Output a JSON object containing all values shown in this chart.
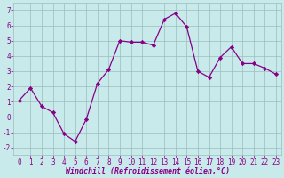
{
  "x": [
    0,
    1,
    2,
    3,
    4,
    5,
    6,
    7,
    8,
    9,
    10,
    11,
    12,
    13,
    14,
    15,
    16,
    17,
    18,
    19,
    20,
    21,
    22,
    23
  ],
  "y": [
    1.1,
    1.9,
    0.7,
    0.3,
    -1.1,
    -1.6,
    -0.15,
    2.2,
    3.1,
    5.0,
    4.9,
    4.9,
    4.7,
    6.4,
    6.8,
    5.9,
    3.0,
    2.6,
    3.9,
    4.6,
    3.5,
    3.5,
    3.2,
    2.8
  ],
  "line_color": "#880088",
  "marker": "D",
  "marker_size": 2.2,
  "bg_color": "#c8eaea",
  "grid_color": "#9bbdbd",
  "xlabel": "Windchill (Refroidissement éolien,°C)",
  "xlabel_color": "#880088",
  "tick_color": "#880088",
  "ylim": [
    -2.5,
    7.5
  ],
  "xlim": [
    -0.5,
    23.5
  ],
  "yticks": [
    -2,
    -1,
    0,
    1,
    2,
    3,
    4,
    5,
    6,
    7
  ],
  "xticks": [
    0,
    1,
    2,
    3,
    4,
    5,
    6,
    7,
    8,
    9,
    10,
    11,
    12,
    13,
    14,
    15,
    16,
    17,
    18,
    19,
    20,
    21,
    22,
    23
  ],
  "tick_fontsize": 5.5,
  "xlabel_fontsize": 6.0
}
